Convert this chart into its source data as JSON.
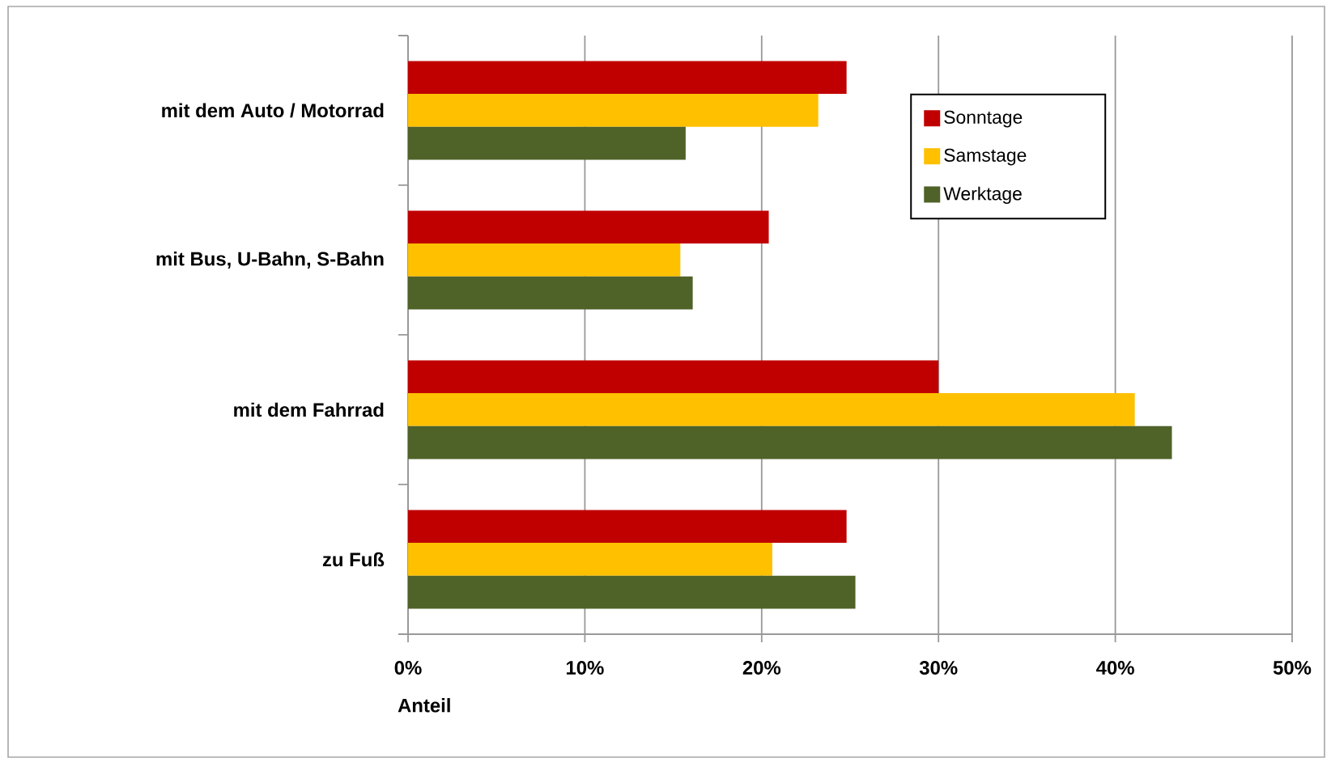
{
  "chart_data": {
    "type": "bar",
    "orientation": "horizontal",
    "categories": [
      "mit dem Auto / Motorrad",
      "mit Bus, U-Bahn, S-Bahn",
      "mit dem Fahrrad",
      "zu Fuß"
    ],
    "series": [
      {
        "name": "Sonntage",
        "color": "#c00000",
        "values": [
          24.8,
          20.4,
          30.0,
          24.8
        ]
      },
      {
        "name": "Samstage",
        "color": "#ffc000",
        "values": [
          23.2,
          15.4,
          41.1,
          20.6
        ]
      },
      {
        "name": "Werktage",
        "color": "#4f6228",
        "values": [
          15.7,
          16.1,
          43.2,
          25.3
        ]
      }
    ],
    "xlabel": "Anteil",
    "xlim": [
      0,
      50
    ],
    "xticks": [
      {
        "value": 0,
        "label": "0%"
      },
      {
        "value": 10,
        "label": "10%"
      },
      {
        "value": 20,
        "label": "20%"
      },
      {
        "value": 30,
        "label": "30%"
      },
      {
        "value": 40,
        "label": "40%"
      },
      {
        "value": 50,
        "label": "50%"
      }
    ],
    "grid": "x",
    "legend": "top right"
  }
}
